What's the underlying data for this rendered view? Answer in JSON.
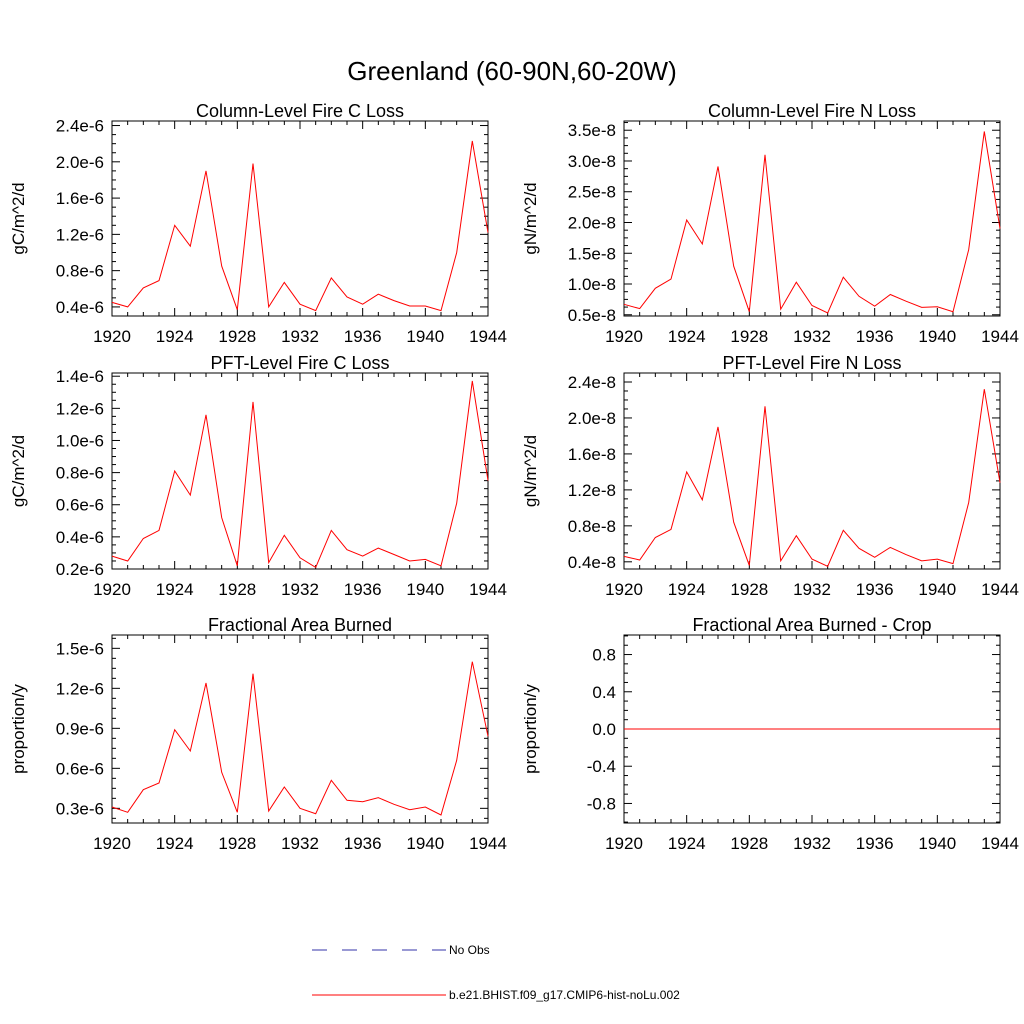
{
  "figure": {
    "title": "Greenland (60-90N,60-20W)"
  },
  "legend": {
    "obs_label": "No Obs",
    "model_label": "b.e21.BHIST.f09_g17.CMIP6-hist-noLu.002",
    "obs_color": "#3333aa",
    "model_color": "#ff0000"
  },
  "chart_data": [
    {
      "type": "line",
      "title": "Column-Level Fire C Loss",
      "ylabel": "gC/m^2/d",
      "xlim": [
        1920,
        1944
      ],
      "ylim": [
        3e-07,
        2.45e-06
      ],
      "xticks": [
        1920,
        1924,
        1928,
        1932,
        1936,
        1940,
        1944
      ],
      "yticks": [
        4e-07,
        8e-07,
        1.2e-06,
        1.6e-06,
        2e-06,
        2.4e-06
      ],
      "ytick_labels": [
        "0.4e-6",
        "0.8e-6",
        "1.2e-6",
        "1.6e-6",
        "2.0e-6",
        "2.4e-6"
      ],
      "x": [
        1920,
        1921,
        1922,
        1923,
        1924,
        1925,
        1926,
        1927,
        1928,
        1929,
        1930,
        1931,
        1932,
        1933,
        1934,
        1935,
        1936,
        1937,
        1938,
        1939,
        1940,
        1941,
        1942,
        1943,
        1944
      ],
      "series": [
        {
          "color": "#ff0000",
          "values": [
            4.5e-07,
            4e-07,
            6.1e-07,
            6.9e-07,
            1.3e-06,
            1.07e-06,
            1.9e-06,
            8.5e-07,
            3.7e-07,
            1.98e-06,
            4e-07,
            6.7e-07,
            4.3e-07,
            3.6e-07,
            7.2e-07,
            5.1e-07,
            4.3e-07,
            5.4e-07,
            4.7e-07,
            4.1e-07,
            4.1e-07,
            3.6e-07,
            1e-06,
            2.23e-06,
            1.22e-06
          ]
        }
      ]
    },
    {
      "type": "line",
      "title": "Column-Level Fire N Loss",
      "ylabel": "gN/m^2/d",
      "xlim": [
        1920,
        1944
      ],
      "ylim": [
        4.8e-09,
        3.65e-08
      ],
      "xticks": [
        1920,
        1924,
        1928,
        1932,
        1936,
        1940,
        1944
      ],
      "yticks": [
        5e-09,
        1e-08,
        1.5e-08,
        2e-08,
        2.5e-08,
        3e-08,
        3.5e-08
      ],
      "ytick_labels": [
        "0.5e-8",
        "1.0e-8",
        "1.5e-8",
        "2.0e-8",
        "2.5e-8",
        "3.0e-8",
        "3.5e-8"
      ],
      "x": [
        1920,
        1921,
        1922,
        1923,
        1924,
        1925,
        1926,
        1927,
        1928,
        1929,
        1930,
        1931,
        1932,
        1933,
        1934,
        1935,
        1936,
        1937,
        1938,
        1939,
        1940,
        1941,
        1942,
        1943,
        1944
      ],
      "series": [
        {
          "color": "#ff0000",
          "values": [
            6.7e-09,
            6e-09,
            9.3e-09,
            1.08e-08,
            2.04e-08,
            1.65e-08,
            2.91e-08,
            1.29e-08,
            5.5e-09,
            3.1e-08,
            5.9e-09,
            1.03e-08,
            6.5e-09,
            5.3e-09,
            1.11e-08,
            8e-09,
            6.4e-09,
            8.3e-09,
            7.2e-09,
            6.2e-09,
            6.3e-09,
            5.5e-09,
            1.56e-08,
            3.48e-08,
            1.9e-08
          ]
        }
      ]
    },
    {
      "type": "line",
      "title": "PFT-Level Fire C Loss",
      "ylabel": "gC/m^2/d",
      "xlim": [
        1920,
        1944
      ],
      "ylim": [
        2e-07,
        1.42e-06
      ],
      "xticks": [
        1920,
        1924,
        1928,
        1932,
        1936,
        1940,
        1944
      ],
      "yticks": [
        2e-07,
        4e-07,
        6e-07,
        8e-07,
        1e-06,
        1.2e-06,
        1.4e-06
      ],
      "ytick_labels": [
        "0.2e-6",
        "0.4e-6",
        "0.6e-6",
        "0.8e-6",
        "1.0e-6",
        "1.2e-6",
        "1.4e-6"
      ],
      "x": [
        1920,
        1921,
        1922,
        1923,
        1924,
        1925,
        1926,
        1927,
        1928,
        1929,
        1930,
        1931,
        1932,
        1933,
        1934,
        1935,
        1936,
        1937,
        1938,
        1939,
        1940,
        1941,
        1942,
        1943,
        1944
      ],
      "series": [
        {
          "color": "#ff0000",
          "values": [
            2.8e-07,
            2.5e-07,
            3.9e-07,
            4.4e-07,
            8.1e-07,
            6.6e-07,
            1.16e-06,
            5.2e-07,
            2.2e-07,
            1.24e-06,
            2.4e-07,
            4.1e-07,
            2.7e-07,
            2.1e-07,
            4.4e-07,
            3.2e-07,
            2.8e-07,
            3.3e-07,
            2.9e-07,
            2.5e-07,
            2.6e-07,
            2.2e-07,
            6.1e-07,
            1.37e-06,
            7.5e-07
          ]
        }
      ]
    },
    {
      "type": "line",
      "title": "PFT-Level Fire N Loss",
      "ylabel": "gN/m^2/d",
      "xlim": [
        1920,
        1944
      ],
      "ylim": [
        3.2e-09,
        2.5e-08
      ],
      "xticks": [
        1920,
        1924,
        1928,
        1932,
        1936,
        1940,
        1944
      ],
      "yticks": [
        4e-09,
        8e-09,
        1.2e-08,
        1.6e-08,
        2e-08,
        2.4e-08
      ],
      "ytick_labels": [
        "0.4e-8",
        "0.8e-8",
        "1.2e-8",
        "1.6e-8",
        "2.0e-8",
        "2.4e-8"
      ],
      "x": [
        1920,
        1921,
        1922,
        1923,
        1924,
        1925,
        1926,
        1927,
        1928,
        1929,
        1930,
        1931,
        1932,
        1933,
        1934,
        1935,
        1936,
        1937,
        1938,
        1939,
        1940,
        1941,
        1942,
        1943,
        1944
      ],
      "series": [
        {
          "color": "#ff0000",
          "values": [
            4.6e-09,
            4.2e-09,
            6.7e-09,
            7.6e-09,
            1.4e-08,
            1.09e-08,
            1.9e-08,
            8.4e-09,
            3.6e-09,
            2.13e-08,
            4.1e-09,
            6.9e-09,
            4.3e-09,
            3.5e-09,
            7.5e-09,
            5.5e-09,
            4.5e-09,
            5.6e-09,
            4.8e-09,
            4.1e-09,
            4.3e-09,
            3.8e-09,
            1.06e-08,
            2.32e-08,
            1.28e-08
          ]
        }
      ]
    },
    {
      "type": "line",
      "title": "Fractional Area Burned",
      "ylabel": "proportion/y",
      "xlim": [
        1920,
        1944
      ],
      "ylim": [
        1.9e-07,
        1.6e-06
      ],
      "xticks": [
        1920,
        1924,
        1928,
        1932,
        1936,
        1940,
        1944
      ],
      "yticks": [
        3e-07,
        6e-07,
        9e-07,
        1.2e-06,
        1.5e-06
      ],
      "ytick_labels": [
        "0.3e-6",
        "0.6e-6",
        "0.9e-6",
        "1.2e-6",
        "1.5e-6"
      ],
      "x": [
        1920,
        1921,
        1922,
        1923,
        1924,
        1925,
        1926,
        1927,
        1928,
        1929,
        1930,
        1931,
        1932,
        1933,
        1934,
        1935,
        1936,
        1937,
        1938,
        1939,
        1940,
        1941,
        1942,
        1943,
        1944
      ],
      "series": [
        {
          "color": "#ff0000",
          "values": [
            3.1e-07,
            2.7e-07,
            4.4e-07,
            4.9e-07,
            8.9e-07,
            7.3e-07,
            1.24e-06,
            5.7e-07,
            2.7e-07,
            1.31e-06,
            2.8e-07,
            4.6e-07,
            3e-07,
            2.6e-07,
            5.1e-07,
            3.6e-07,
            3.5e-07,
            3.8e-07,
            3.3e-07,
            2.9e-07,
            3.1e-07,
            2.5e-07,
            6.6e-07,
            1.4e-06,
            8.4e-07
          ]
        }
      ]
    },
    {
      "type": "line",
      "title": "Fractional Area Burned - Crop",
      "ylabel": "proportion/y",
      "xlim": [
        1920,
        1944
      ],
      "ylim": [
        -1.01,
        1.01
      ],
      "xticks": [
        1920,
        1924,
        1928,
        1932,
        1936,
        1940,
        1944
      ],
      "yticks": [
        -0.8,
        -0.4,
        0.0,
        0.4,
        0.8
      ],
      "ytick_labels": [
        "-0.8",
        "-0.4",
        "0.0",
        "0.4",
        "0.8"
      ],
      "x": [
        1920,
        1921,
        1922,
        1923,
        1924,
        1925,
        1926,
        1927,
        1928,
        1929,
        1930,
        1931,
        1932,
        1933,
        1934,
        1935,
        1936,
        1937,
        1938,
        1939,
        1940,
        1941,
        1942,
        1943,
        1944
      ],
      "series": [
        {
          "color": "#ff0000",
          "values": [
            0,
            0,
            0,
            0,
            0,
            0,
            0,
            0,
            0,
            0,
            0,
            0,
            0,
            0,
            0,
            0,
            0,
            0,
            0,
            0,
            0,
            0,
            0,
            0,
            0
          ]
        }
      ]
    }
  ]
}
